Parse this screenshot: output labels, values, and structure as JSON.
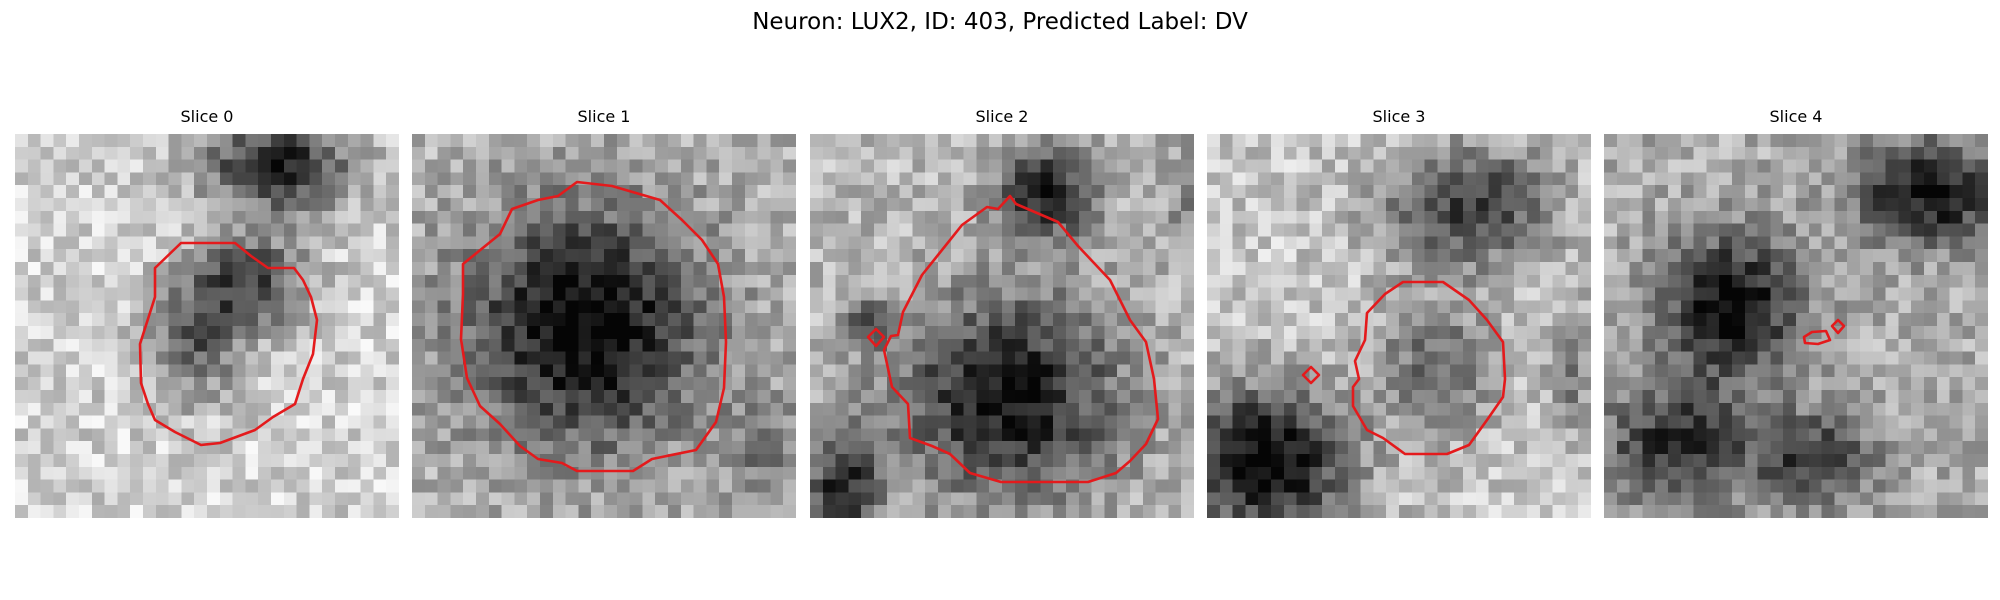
{
  "figure": {
    "title": "Neuron: LUX2, ID: 403, Predicted Label: DV",
    "colormap": "gray",
    "contour_color": "#e41a1c"
  },
  "slices": [
    {
      "title": "Slice 0"
    },
    {
      "title": "Slice 1"
    },
    {
      "title": "Slice 2"
    },
    {
      "title": "Slice 3"
    },
    {
      "title": "Slice 4"
    }
  ]
}
